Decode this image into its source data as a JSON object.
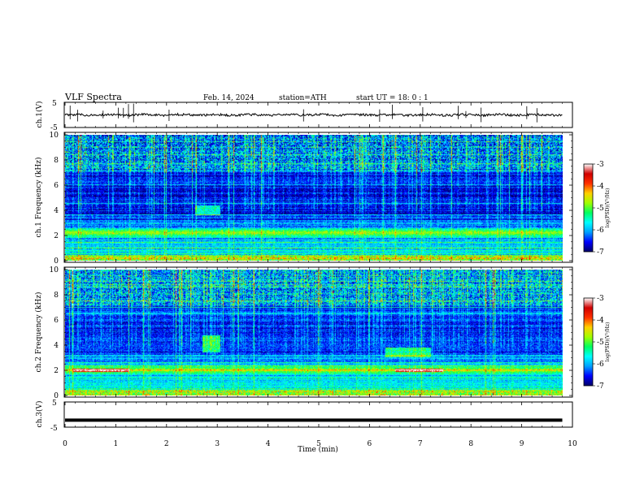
{
  "header": {
    "title": "VLF  Spectra",
    "date": "Feb. 14, 2024",
    "station": "station=ATH",
    "start": "start  UT  =    18: 0   : 1"
  },
  "chart_data": {
    "type": "heatmap",
    "xlabel": "Time  (min)",
    "xlim": [
      0,
      10
    ],
    "x_ticks": [
      "0",
      "1",
      "2",
      "3",
      "4",
      "5",
      "6",
      "7",
      "8",
      "9",
      "10"
    ],
    "data_end_min": 9.8,
    "panels": [
      {
        "kind": "waveform",
        "ylabel": "ch.1(V)",
        "ylim": [
          -5,
          5
        ],
        "y_ticks": [
          "5",
          "-5"
        ],
        "mean_level": 0,
        "noise_amplitude": 0.9,
        "spike_times": [
          0.1,
          0.25,
          0.75,
          1.05,
          1.15,
          1.25,
          1.35,
          2.05,
          4.7,
          6.2,
          6.45,
          7.05,
          7.75,
          7.9,
          8.2,
          9.1,
          9.3
        ]
      },
      {
        "kind": "spectrogram",
        "ylabel": "ch.1 Frequency  (kHz)",
        "ylim": [
          0,
          10
        ],
        "y_ticks": [
          "0",
          "2",
          "4",
          "6",
          "8",
          "10"
        ],
        "features": {
          "background_log_psd": -6.6,
          "strong_band_kHz": 2.2,
          "enhanced_patches": [
            [
              2.55,
              3.05,
              3.6,
              4.4
            ]
          ],
          "vertical_sferics": "dense broadband impulses, strongest above 7 kHz"
        }
      },
      {
        "kind": "spectrogram",
        "ylabel": "ch.2 Frequency  (kHz)",
        "ylim": [
          0,
          10
        ],
        "y_ticks": [
          "0",
          "2",
          "4",
          "6",
          "8",
          "10"
        ],
        "features": {
          "background_log_psd": -6.5,
          "strong_band_kHz": 2.0,
          "red_band_segments_min": [
            [
              0.15,
              1.25
            ],
            [
              6.5,
              7.45
            ]
          ],
          "enhanced_patches": [
            [
              2.7,
              3.05,
              3.4,
              4.8
            ],
            [
              6.3,
              7.2,
              3.0,
              3.8
            ]
          ],
          "vertical_sferics": "dense broadband impulses"
        }
      },
      {
        "kind": "waveform",
        "ylabel": "ch.3(V)",
        "ylim": [
          -5,
          5
        ],
        "y_ticks": [
          "5",
          "-5"
        ],
        "mean_level": -2.2,
        "noise_amplitude": 0
      }
    ],
    "colorbar": {
      "label": "log(PSD)(V²/Hz)",
      "range": [
        -7,
        -3
      ],
      "ticks": [
        "-3",
        "-4",
        "-5",
        "-6",
        "-7"
      ],
      "colors": [
        "#000066",
        "#0000ff",
        "#00a0ff",
        "#00ffff",
        "#00ff60",
        "#a0ff00",
        "#ffd000",
        "#ff3000",
        "#d00000",
        "#ffffff"
      ]
    }
  }
}
